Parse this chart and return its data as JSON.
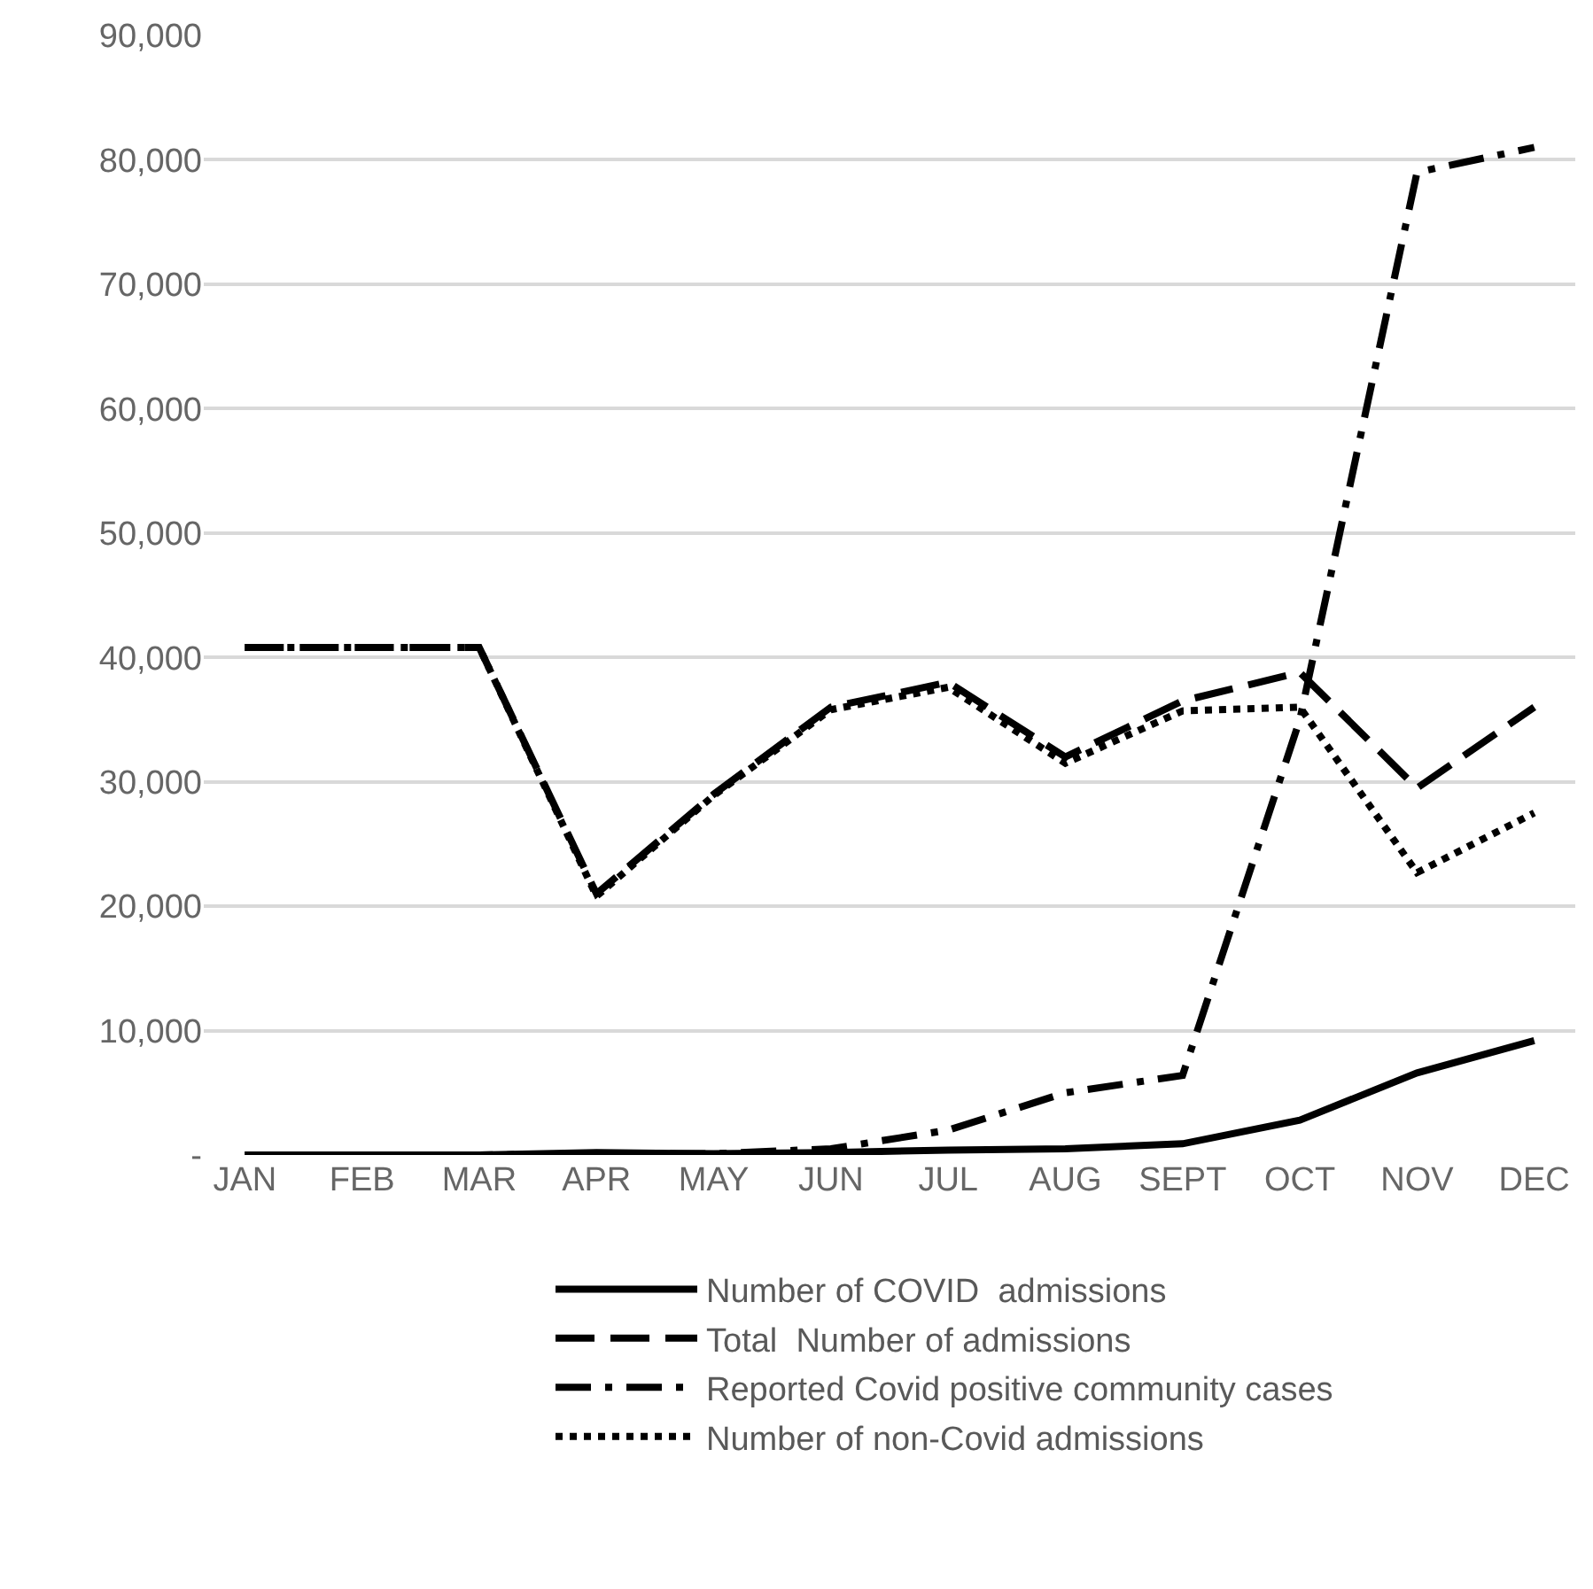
{
  "chart_data": {
    "type": "line",
    "categories": [
      "JAN",
      "FEB",
      "MAR",
      "APR",
      "MAY",
      "JUN",
      "JUL",
      "AUG",
      "SEPT",
      "OCT",
      "NOV",
      "DEC"
    ],
    "series": [
      {
        "name": "Number of COVID  admissions",
        "color": "#000000",
        "line_style": "solid",
        "values": [
          0,
          0,
          0,
          200,
          100,
          200,
          400,
          500,
          900,
          2800,
          6600,
          9200
        ]
      },
      {
        "name": "Total  Number of admissions",
        "color": "#000000",
        "line_style": "dashed",
        "values": [
          40800,
          40800,
          40800,
          21000,
          29000,
          36000,
          38000,
          32000,
          36500,
          38800,
          29500,
          36000
        ]
      },
      {
        "name": "Reported Covid positive community cases",
        "color": "#000000",
        "line_style": "dashdot",
        "values": [
          0,
          0,
          0,
          100,
          100,
          500,
          2000,
          5000,
          6400,
          35000,
          79000,
          81000
        ]
      },
      {
        "name": "Number of non-Covid admissions",
        "color": "#000000",
        "line_style": "dotted",
        "values": [
          40800,
          40800,
          40800,
          20800,
          28900,
          35800,
          37600,
          31500,
          35700,
          36000,
          22700,
          27500
        ]
      }
    ],
    "ylim": [
      0,
      90000
    ],
    "yticks": [
      {
        "value": 0,
        "label": "-"
      },
      {
        "value": 10000,
        "label": "10,000"
      },
      {
        "value": 20000,
        "label": "20,000"
      },
      {
        "value": 30000,
        "label": "30,000"
      },
      {
        "value": 40000,
        "label": "40,000"
      },
      {
        "value": 50000,
        "label": "50,000"
      },
      {
        "value": 60000,
        "label": "60,000"
      },
      {
        "value": 70000,
        "label": "70,000"
      },
      {
        "value": 80000,
        "label": "80,000"
      },
      {
        "value": 90000,
        "label": "90,000"
      }
    ],
    "grid": "y",
    "legend": "bottom",
    "marker": "none"
  }
}
